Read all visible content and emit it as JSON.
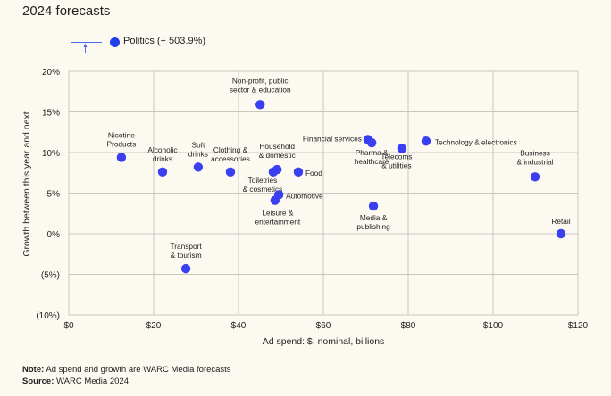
{
  "title": "2024 forecasts",
  "legend": {
    "label": "Politics (+ 503.9%)",
    "color": "#1f3fe8"
  },
  "footer": {
    "note_label": "Note:",
    "note_text": " Ad spend and growth are WARC Media forecasts",
    "source_label": "Source:",
    "source_text": " WARC Media 2024"
  },
  "chart_data": {
    "type": "scatter",
    "title": "2024 forecasts",
    "xlabel": "Ad spend: $, nominal, billions",
    "ylabel": "Growth between this year and next",
    "xlim": [
      0,
      120
    ],
    "ylim": [
      -10,
      20
    ],
    "xticks": [
      0,
      20,
      40,
      60,
      80,
      100,
      120
    ],
    "xtick_labels": [
      "$0",
      "$20",
      "$40",
      "$60",
      "$80",
      "$100",
      "$120"
    ],
    "yticks": [
      20,
      15,
      10,
      5,
      0,
      -5,
      -10
    ],
    "ytick_labels": [
      "20%",
      "15%",
      "10%",
      "5%",
      "0%",
      "(5%)",
      "(10%)"
    ],
    "grid": true,
    "point_color": "#3a3ff0",
    "annotation": "Politics (+ 503.9%) off-scale above",
    "points": [
      {
        "label": "Nicotine Products",
        "x": 12.4,
        "y": 9.4
      },
      {
        "label": "Alcoholic drinks",
        "x": 22.1,
        "y": 7.6
      },
      {
        "label": "Soft drinks",
        "x": 30.5,
        "y": 8.2
      },
      {
        "label": "Clothing & accessories",
        "x": 38.1,
        "y": 7.6
      },
      {
        "label": "Toiletries & cosmetics",
        "x": 48.2,
        "y": 7.6
      },
      {
        "label": "Household & domestic",
        "x": 49.1,
        "y": 7.9
      },
      {
        "label": "Food",
        "x": 54.1,
        "y": 7.6
      },
      {
        "label": "Automotive",
        "x": 49.5,
        "y": 4.8
      },
      {
        "label": "Leisure & entertainment",
        "x": 48.6,
        "y": 4.1
      },
      {
        "label": "Non-profit, public sector & education",
        "x": 45.1,
        "y": 15.9
      },
      {
        "label": "Financial services",
        "x": 70.5,
        "y": 11.6
      },
      {
        "label": "Pharma & healthcare",
        "x": 71.4,
        "y": 11.2
      },
      {
        "label": "Telecoms & utilities",
        "x": 78.5,
        "y": 10.5
      },
      {
        "label": "Technology & electronics",
        "x": 84.2,
        "y": 11.4
      },
      {
        "label": "Media & publishing",
        "x": 71.8,
        "y": 3.4
      },
      {
        "label": "Business & industrial",
        "x": 109.9,
        "y": 7.0
      },
      {
        "label": "Retail",
        "x": 116.0,
        "y": 0.0
      },
      {
        "label": "Transport & tourism",
        "x": 27.6,
        "y": -4.3
      }
    ]
  }
}
